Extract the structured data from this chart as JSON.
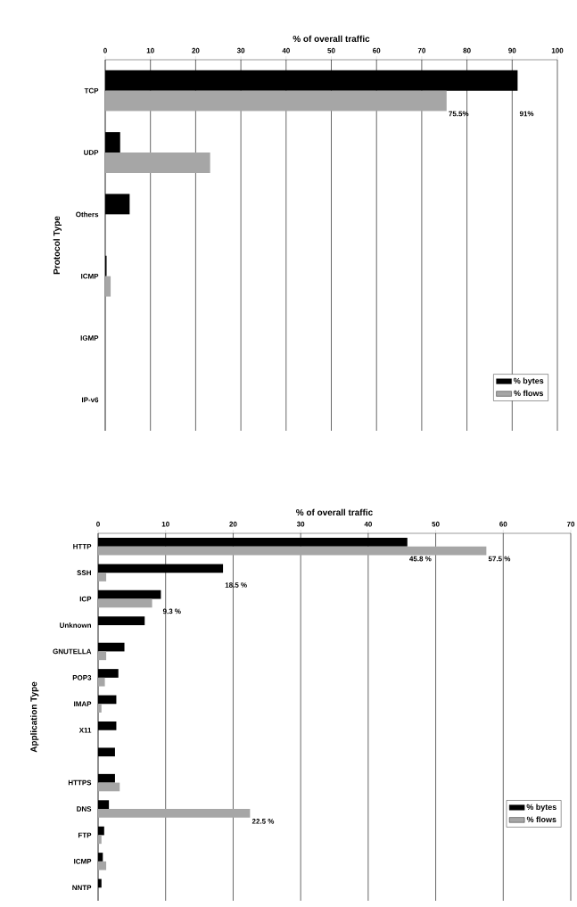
{
  "chart_data": [
    {
      "type": "bar",
      "orientation": "horizontal",
      "xlabel": "% of overall traffic",
      "ylabel": "Protocol Type",
      "categories": [
        "TCP",
        "UDP",
        "Others",
        "ICMP",
        "IGMP",
        "IP-v6"
      ],
      "series": [
        {
          "name": "% bytes",
          "color": "#000000",
          "values": [
            91.2,
            3.3,
            5.4,
            0.3,
            0,
            0
          ]
        },
        {
          "name": "% flows",
          "color": "#a6a6a6",
          "values": [
            75.5,
            23.2,
            0,
            1.2,
            0,
            0
          ]
        }
      ],
      "xlim": [
        0,
        100
      ],
      "xticks": [
        0,
        10,
        20,
        30,
        40,
        50,
        60,
        70,
        80,
        90,
        100
      ],
      "grid": "x",
      "legend": "bottom right",
      "annotations": [
        {
          "text": "91%",
          "x": 91.2,
          "y": "TCP"
        },
        {
          "text": "75.5%",
          "x": 75.5,
          "y": "TCP"
        }
      ]
    },
    {
      "type": "bar",
      "orientation": "horizontal",
      "xlabel": "% of overall traffic",
      "ylabel": "Application Type",
      "categories": [
        "HTTP",
        "SSH",
        "ICP",
        "Unknown",
        "GNUTELLA",
        "POP3",
        "IMAP",
        "X11",
        null,
        "HTTPS",
        "DNS",
        "FTP",
        "ICMP",
        "NNTP"
      ],
      "series": [
        {
          "name": "% bytes",
          "color": "#000000",
          "values": [
            45.8,
            18.5,
            9.3,
            6.9,
            3.9,
            3.0,
            2.7,
            2.7,
            2.5,
            2.5,
            1.6,
            0.9,
            0.7,
            0.5
          ]
        },
        {
          "name": "% flows",
          "color": "#a6a6a6",
          "values": [
            57.5,
            1.2,
            8.0,
            0,
            1.2,
            1.0,
            0.5,
            null,
            0,
            3.2,
            22.5,
            0.5,
            1.2,
            0
          ]
        }
      ],
      "xlim": [
        0,
        70
      ],
      "xticks": [
        0,
        10,
        20,
        30,
        40,
        50,
        60,
        70
      ],
      "grid": "x",
      "legend": "bottom right",
      "annotations": [
        {
          "text": "45.8 %",
          "x": 45.8,
          "y": "HTTP"
        },
        {
          "text": "57.5 %",
          "x": 57.5,
          "y": "HTTP"
        },
        {
          "text": "18.5 %",
          "x": 18.5,
          "y": "SSH"
        },
        {
          "text": "9.3 %",
          "x": 9.3,
          "y": "ICP"
        },
        {
          "text": "22.5 %",
          "x": 22.5,
          "y": "DNS"
        }
      ]
    }
  ]
}
